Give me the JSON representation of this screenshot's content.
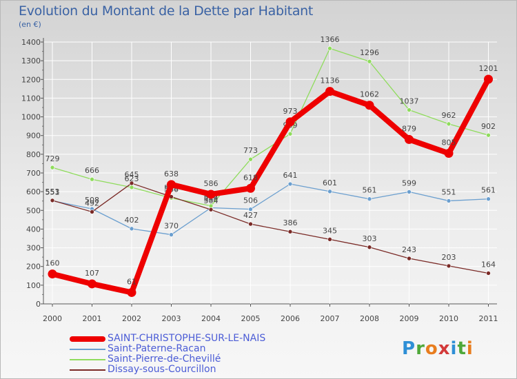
{
  "title": "Evolution du Montant de la Dette par Habitant",
  "subtitle": "(en €)",
  "logo": {
    "text": "Proxiti",
    "letter_colors": [
      "#2e8fd6",
      "#4fa83a",
      "#e87d1e",
      "#d33a3a",
      "#2e8fd6",
      "#4fa83a",
      "#e87d1e"
    ]
  },
  "chart_data": {
    "type": "line",
    "categories": [
      "2000",
      "2001",
      "2002",
      "2003",
      "2004",
      "2005",
      "2006",
      "2007",
      "2008",
      "2009",
      "2010",
      "2011"
    ],
    "ylim": [
      0,
      1400
    ],
    "y_ticks": [
      "0",
      "100",
      "200",
      "300",
      "400",
      "500",
      "600",
      "700",
      "800",
      "900",
      "1000",
      "1100",
      "1200",
      "1300",
      "1400"
    ],
    "grid": true,
    "legend_position": "bottom-left",
    "series": [
      {
        "name": "Saint-Paterne-Racan",
        "color": "#6b9fcf",
        "values": [
          551,
          508,
          402,
          370,
          514,
          506,
          641,
          601,
          561,
          599,
          551,
          561
        ],
        "labels": [
          "551",
          "508",
          "402",
          "370",
          "514",
          "506",
          "641",
          "601",
          "561",
          "599",
          "551",
          "561"
        ]
      },
      {
        "name": "Saint-Pierre-de-Chevillé",
        "color": "#8fdc5c",
        "values": [
          729,
          666,
          623,
          566,
          524,
          773,
          909,
          1366,
          1296,
          1037,
          962,
          902
        ],
        "labels": [
          "729",
          "666",
          "623",
          "566",
          "524",
          "773",
          "909",
          "1366",
          "1296",
          "1037",
          "962",
          "902"
        ]
      },
      {
        "name": "Dissay-sous-Courcillon",
        "color": "#7a2a26",
        "values": [
          553,
          492,
          645,
          573,
          504,
          427,
          386,
          345,
          303,
          243,
          203,
          164
        ],
        "labels": [
          "553",
          "492",
          "645",
          "573",
          "504",
          "427",
          "386",
          "345",
          "303",
          "243",
          "203",
          "164"
        ]
      },
      {
        "name": "SAINT-CHRISTOPHE-SUR-LE-NAIS",
        "color": "#ee0000",
        "values": [
          160,
          107,
          61,
          638,
          586,
          618,
          973,
          1136,
          1062,
          879,
          805,
          1201
        ],
        "labels": [
          "160",
          "107",
          "61",
          "638",
          "586",
          "618",
          "973",
          "1136",
          "1062",
          "879",
          "805",
          "1201"
        ]
      }
    ],
    "legend": [
      {
        "name": "SAINT-CHRISTOPHE-SUR-LE-NAIS",
        "color": "#ee0000"
      },
      {
        "name": "Saint-Paterne-Racan",
        "color": "#6b9fcf"
      },
      {
        "name": "Saint-Pierre-de-Chevillé",
        "color": "#8fdc5c"
      },
      {
        "name": "Dissay-sous-Courcillon",
        "color": "#7a2a26"
      }
    ]
  }
}
